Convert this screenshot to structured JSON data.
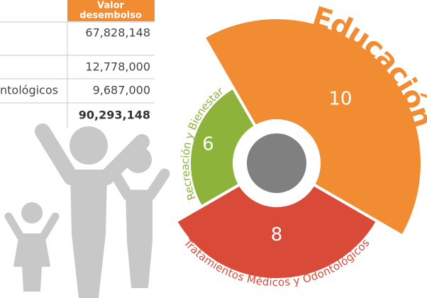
{
  "table": {
    "header": [
      "Valor",
      "desembolso"
    ],
    "rows": [
      {
        "value": "67,828,148"
      },
      {
        "value": "12,778,000"
      },
      {
        "label": "ntológicos",
        "value": "9,687,000"
      },
      {
        "value": "90,293,148"
      }
    ]
  },
  "chart_data": {
    "type": "polar",
    "categories": [
      "Educación",
      "Tratamientos Médicos y Odontológicos",
      "Recreación y Bienestar"
    ],
    "values": [
      10,
      8,
      6
    ],
    "colors": [
      "#f28c33",
      "#d94a38",
      "#8db33a"
    ]
  }
}
